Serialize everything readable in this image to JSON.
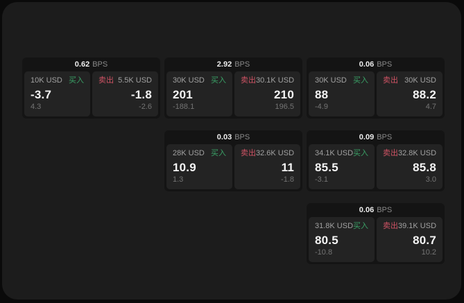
{
  "labels": {
    "bps_unit": "BPS",
    "buy": "买入",
    "sell": "卖出"
  },
  "colors": {
    "buy_green": "#3aa066",
    "sell_red": "#cf5364",
    "page_bg": "#0a0a0a",
    "window_bg": "#1c1c1c",
    "card_bg": "#141414",
    "panel_bg": "#232323"
  },
  "cards": [
    {
      "row": 1,
      "col": 1,
      "bps": "0.62",
      "buy": {
        "size": "10K USD",
        "price": "-3.7",
        "delta": "4.3"
      },
      "sell": {
        "size": "5.5K USD",
        "price": "-1.8",
        "delta": "-2.6"
      }
    },
    {
      "row": 1,
      "col": 2,
      "bps": "2.92",
      "buy": {
        "size": "30K USD",
        "price": "201",
        "delta": "-188.1"
      },
      "sell": {
        "size": "30.1K USD",
        "price": "210",
        "delta": "196.5"
      }
    },
    {
      "row": 1,
      "col": 3,
      "bps": "0.06",
      "buy": {
        "size": "30K USD",
        "price": "88",
        "delta": "-4.9"
      },
      "sell": {
        "size": "30K USD",
        "price": "88.2",
        "delta": "4.7"
      }
    },
    {
      "row": 2,
      "col": 2,
      "bps": "0.03",
      "buy": {
        "size": "28K USD",
        "price": "10.9",
        "delta": "1.3"
      },
      "sell": {
        "size": "32.6K USD",
        "price": "11",
        "delta": "-1.8"
      }
    },
    {
      "row": 2,
      "col": 3,
      "bps": "0.09",
      "buy": {
        "size": "34.1K USD",
        "price": "85.5",
        "delta": "-3.1"
      },
      "sell": {
        "size": "32.8K USD",
        "price": "85.8",
        "delta": "3.0"
      }
    },
    {
      "row": 3,
      "col": 3,
      "bps": "0.06",
      "buy": {
        "size": "31.8K USD",
        "price": "80.5",
        "delta": "-10.8"
      },
      "sell": {
        "size": "39.1K USD",
        "price": "80.7",
        "delta": "10.2"
      }
    }
  ]
}
